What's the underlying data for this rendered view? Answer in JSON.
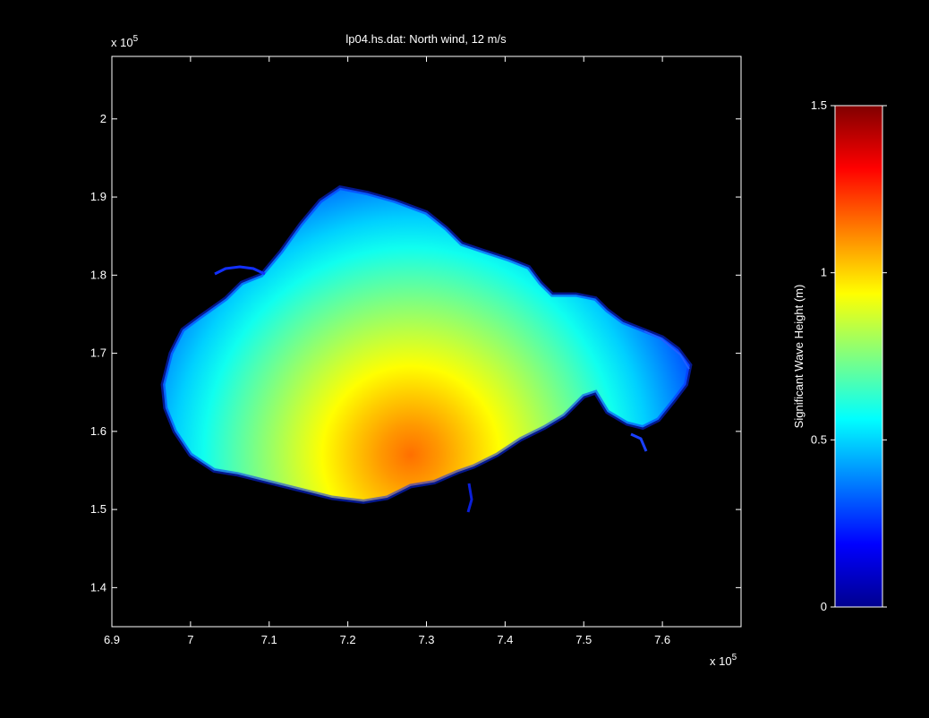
{
  "chart_data": {
    "type": "heatmap",
    "title": "lp04.hs.dat:  North wind, 12 m/s",
    "background": "#000000",
    "axis_color": "#ffffff",
    "x": {
      "range": [
        6.9,
        7.7
      ],
      "ticks": [
        6.9,
        7.0,
        7.1,
        7.2,
        7.3,
        7.4,
        7.5,
        7.6
      ],
      "tick_labels": [
        "6.9",
        "7",
        "7.1",
        "7.2",
        "7.3",
        "7.4",
        "7.5",
        "7.6"
      ],
      "multiplier_label": "x 10",
      "multiplier_exponent": "5"
    },
    "y": {
      "range": [
        1.35,
        2.08
      ],
      "ticks": [
        1.4,
        1.5,
        1.6,
        1.7,
        1.8,
        1.9,
        2.0
      ],
      "tick_labels": [
        "1.4",
        "1.5",
        "1.6",
        "1.7",
        "1.8",
        "1.9",
        "2"
      ],
      "multiplier_label": "x 10",
      "multiplier_exponent": "5"
    },
    "colorbar": {
      "label": "Significant Wave Height (m)",
      "range": [
        0,
        1.5
      ],
      "ticks": [
        0,
        0.5,
        1,
        1.5
      ],
      "tick_labels": [
        "0",
        "0.5",
        "1",
        "1.5"
      ],
      "colormap": "jet",
      "colormap_stops": [
        "#00008f",
        "#0000ff",
        "#0080ff",
        "#00ffff",
        "#80ff80",
        "#ffff00",
        "#ff8000",
        "#ff0000",
        "#800000"
      ]
    },
    "field": {
      "description_values": "significant wave height over lake domain",
      "boundary": [
        [
          6.965,
          1.66
        ],
        [
          6.975,
          1.7
        ],
        [
          6.99,
          1.73
        ],
        [
          7.01,
          1.745
        ],
        [
          7.045,
          1.77
        ],
        [
          7.065,
          1.79
        ],
        [
          7.09,
          1.8
        ],
        [
          7.115,
          1.83
        ],
        [
          7.14,
          1.865
        ],
        [
          7.165,
          1.895
        ],
        [
          7.19,
          1.912
        ],
        [
          7.225,
          1.905
        ],
        [
          7.26,
          1.895
        ],
        [
          7.3,
          1.88
        ],
        [
          7.325,
          1.86
        ],
        [
          7.345,
          1.84
        ],
        [
          7.375,
          1.83
        ],
        [
          7.405,
          1.82
        ],
        [
          7.43,
          1.81
        ],
        [
          7.445,
          1.79
        ],
        [
          7.46,
          1.775
        ],
        [
          7.49,
          1.775
        ],
        [
          7.515,
          1.77
        ],
        [
          7.53,
          1.755
        ],
        [
          7.55,
          1.74
        ],
        [
          7.575,
          1.73
        ],
        [
          7.6,
          1.72
        ],
        [
          7.62,
          1.705
        ],
        [
          7.635,
          1.685
        ],
        [
          7.63,
          1.66
        ],
        [
          7.615,
          1.64
        ],
        [
          7.595,
          1.615
        ],
        [
          7.575,
          1.605
        ],
        [
          7.555,
          1.61
        ],
        [
          7.53,
          1.625
        ],
        [
          7.515,
          1.65
        ],
        [
          7.5,
          1.645
        ],
        [
          7.475,
          1.62
        ],
        [
          7.45,
          1.605
        ],
        [
          7.42,
          1.59
        ],
        [
          7.39,
          1.57
        ],
        [
          7.36,
          1.555
        ],
        [
          7.34,
          1.548
        ],
        [
          7.31,
          1.535
        ],
        [
          7.28,
          1.53
        ],
        [
          7.25,
          1.515
        ],
        [
          7.22,
          1.51
        ],
        [
          7.18,
          1.515
        ],
        [
          7.14,
          1.525
        ],
        [
          7.1,
          1.535
        ],
        [
          7.06,
          1.545
        ],
        [
          7.03,
          1.55
        ],
        [
          7.0,
          1.57
        ],
        [
          6.98,
          1.6
        ],
        [
          6.968,
          1.63
        ]
      ],
      "peak": {
        "x": 7.28,
        "y": 1.57,
        "value": 1.12
      },
      "max_value": 1.15,
      "min_value": 0.3
    }
  }
}
